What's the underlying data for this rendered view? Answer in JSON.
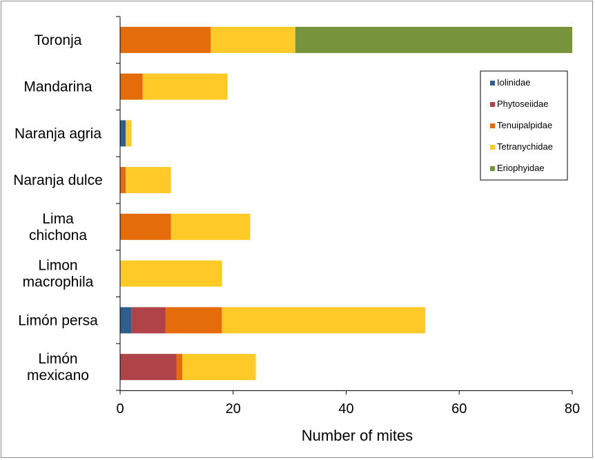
{
  "chart_data": {
    "type": "bar",
    "orientation": "horizontal",
    "stacked": true,
    "title": "",
    "xlabel": "Number of mites",
    "ylabel": "",
    "xlim": [
      0,
      80
    ],
    "xticks": [
      0,
      20,
      40,
      60,
      80
    ],
    "grid": false,
    "legend_position": "right",
    "categories": [
      "Toronja",
      "Mandarina",
      "Naranja agria",
      "Naranja dulce",
      "Lima chichona",
      "Limon macrophila",
      "Limón persa",
      "Limón mexicano"
    ],
    "category_lines": [
      [
        "Toronja"
      ],
      [
        "Mandarina"
      ],
      [
        "Naranja agria"
      ],
      [
        "Naranja dulce"
      ],
      [
        "Lima",
        "chichona"
      ],
      [
        "Limon",
        "macrophila"
      ],
      [
        "Limón persa"
      ],
      [
        "Limón",
        "mexicano"
      ]
    ],
    "series": [
      {
        "name": "Iolinidae",
        "color": "#2E5F8F",
        "values": [
          0,
          0,
          1,
          0,
          0,
          0,
          2,
          0
        ]
      },
      {
        "name": "Phytoseiidae",
        "color": "#B04348",
        "values": [
          0,
          0,
          0,
          0,
          0,
          0,
          6,
          10
        ]
      },
      {
        "name": "Tenuipalpidae",
        "color": "#E46C0A",
        "values": [
          16,
          4,
          0,
          1,
          9,
          0,
          10,
          1
        ]
      },
      {
        "name": "Tetranychidae",
        "color": "#FFCA28",
        "values": [
          15,
          15,
          1,
          8,
          14,
          18,
          36,
          13
        ]
      },
      {
        "name": "Eriophyidae",
        "color": "#77933C",
        "values": [
          49,
          0,
          0,
          0,
          0,
          0,
          0,
          0
        ]
      }
    ]
  }
}
